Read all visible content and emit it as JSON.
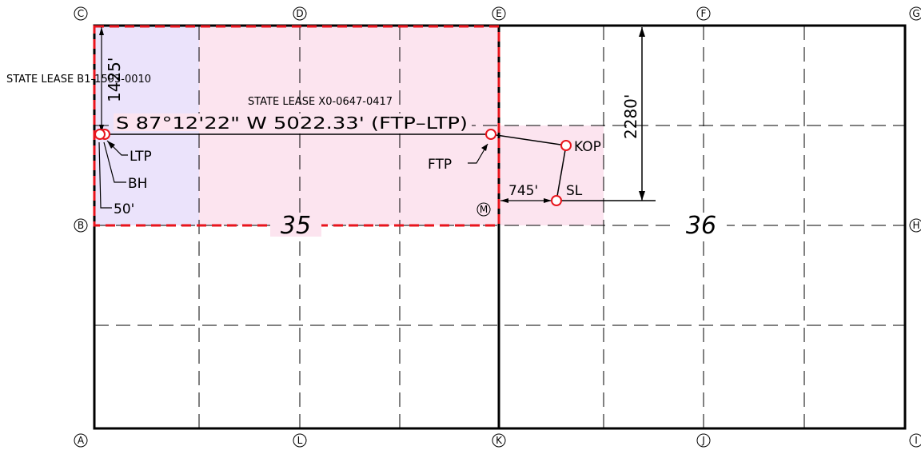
{
  "leases": {
    "left": "STATE LEASE B1-1593-0010",
    "center": "STATE LEASE X0-0647-0417"
  },
  "bearing_label": "S 87°12'22\" W 5022.33' (FTP–LTP)",
  "dimensions": {
    "north_offset": "1425'",
    "fnl_sl": "2280'",
    "fwl_sl": "745'",
    "bh_offset": "50'"
  },
  "points": {
    "ltp": "LTP",
    "bh": "BH",
    "ftp": "FTP",
    "kop": "KOP",
    "sl": "SL"
  },
  "sections": {
    "left": "35",
    "right": "36"
  },
  "corner_calls": {
    "C": "C",
    "D": "D",
    "E": "E",
    "F": "F",
    "G": "G",
    "B": "B",
    "M": "M",
    "H": "H",
    "A": "A",
    "L": "L",
    "K": "K",
    "J": "J",
    "I": "I"
  },
  "colors": {
    "lease_lavender": "#ebe3fb",
    "lease_pink": "#fce4ef",
    "boundary_red": "#e8141c",
    "marker_red": "#e8141c",
    "line": "#000000"
  }
}
